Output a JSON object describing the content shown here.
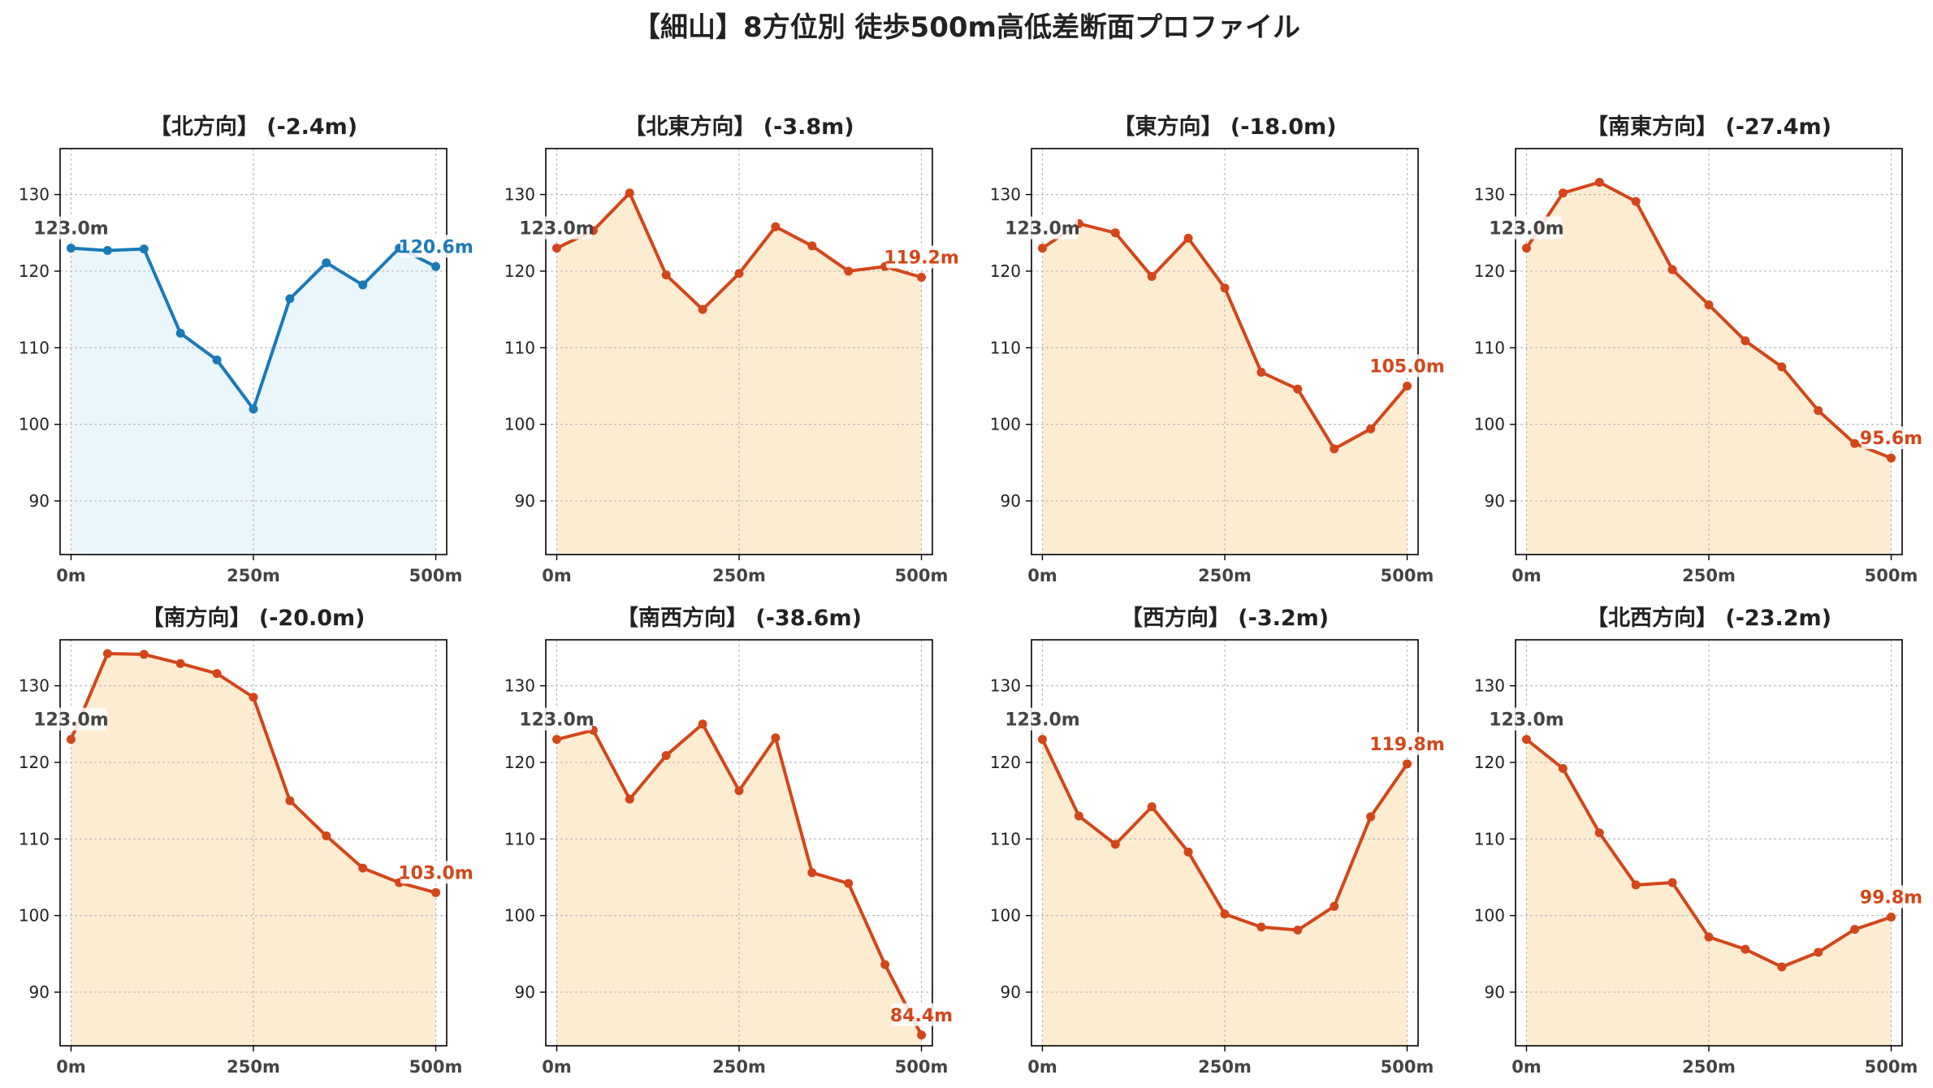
{
  "suptitle": "【細山】8方位別 徒歩500m高低差断面プロファイル",
  "colors": {
    "north_line": "#1a7ab8",
    "north_fill": "#eaf6fb",
    "line": "#d3461a",
    "fill": "#fdecd2",
    "start_label": "#444444",
    "grid": "#bbbbbb"
  },
  "chart_data": [
    {
      "type": "area",
      "title": "【北方向】 (-2.4m)",
      "x": [
        0,
        50,
        100,
        150,
        200,
        250,
        300,
        350,
        400,
        450,
        500
      ],
      "y": [
        123.0,
        122.7,
        122.9,
        111.9,
        108.4,
        102.0,
        116.4,
        121.1,
        118.2,
        123.0,
        120.6
      ],
      "start_label": "123.0m",
      "end_label": "120.6m",
      "xticks": [
        "0m",
        "250m",
        "500m"
      ],
      "yticks": [
        90,
        100,
        110,
        120,
        130
      ],
      "ylim": [
        83,
        136
      ],
      "xlim": [
        -15,
        515
      ],
      "grid": true
    },
    {
      "type": "area",
      "title": "【北東方向】 (-3.8m)",
      "x": [
        0,
        50,
        100,
        150,
        200,
        250,
        300,
        350,
        400,
        450,
        500
      ],
      "y": [
        123.0,
        125.3,
        130.2,
        119.5,
        115.0,
        119.7,
        125.8,
        123.3,
        120.0,
        120.6,
        119.2
      ],
      "start_label": "123.0m",
      "end_label": "119.2m",
      "xticks": [
        "0m",
        "250m",
        "500m"
      ],
      "yticks": [
        90,
        100,
        110,
        120,
        130
      ],
      "ylim": [
        83,
        136
      ],
      "xlim": [
        -15,
        515
      ],
      "grid": true
    },
    {
      "type": "area",
      "title": "【東方向】 (-18.0m)",
      "x": [
        0,
        50,
        100,
        150,
        200,
        250,
        300,
        350,
        400,
        450,
        500
      ],
      "y": [
        123.0,
        126.2,
        125.0,
        119.3,
        124.3,
        117.8,
        106.8,
        104.6,
        96.8,
        99.4,
        105.0
      ],
      "start_label": "123.0m",
      "end_label": "105.0m",
      "xticks": [
        "0m",
        "250m",
        "500m"
      ],
      "yticks": [
        90,
        100,
        110,
        120,
        130
      ],
      "ylim": [
        83,
        136
      ],
      "xlim": [
        -15,
        515
      ],
      "grid": true
    },
    {
      "type": "area",
      "title": "【南東方向】 (-27.4m)",
      "x": [
        0,
        50,
        100,
        150,
        200,
        250,
        300,
        350,
        400,
        450,
        500
      ],
      "y": [
        123.0,
        130.2,
        131.6,
        129.1,
        120.2,
        115.6,
        110.9,
        107.5,
        101.8,
        97.5,
        95.6
      ],
      "start_label": "123.0m",
      "end_label": "95.6m",
      "xticks": [
        "0m",
        "250m",
        "500m"
      ],
      "yticks": [
        90,
        100,
        110,
        120,
        130
      ],
      "ylim": [
        83,
        136
      ],
      "xlim": [
        -15,
        515
      ],
      "grid": true
    },
    {
      "type": "area",
      "title": "【南方向】 (-20.0m)",
      "x": [
        0,
        50,
        100,
        150,
        200,
        250,
        300,
        350,
        400,
        450,
        500
      ],
      "y": [
        123.0,
        134.2,
        134.1,
        132.9,
        131.6,
        128.5,
        115.0,
        110.4,
        106.2,
        104.3,
        103.0
      ],
      "start_label": "123.0m",
      "end_label": "103.0m",
      "xticks": [
        "0m",
        "250m",
        "500m"
      ],
      "yticks": [
        90,
        100,
        110,
        120,
        130
      ],
      "ylim": [
        83,
        136
      ],
      "xlim": [
        -15,
        515
      ],
      "grid": true
    },
    {
      "type": "area",
      "title": "【南西方向】 (-38.6m)",
      "x": [
        0,
        50,
        100,
        150,
        200,
        250,
        300,
        350,
        400,
        450,
        500
      ],
      "y": [
        123.0,
        124.2,
        115.2,
        120.9,
        125.0,
        116.3,
        123.2,
        105.6,
        104.2,
        93.6,
        84.4
      ],
      "start_label": "123.0m",
      "end_label": "84.4m",
      "xticks": [
        "0m",
        "250m",
        "500m"
      ],
      "yticks": [
        90,
        100,
        110,
        120,
        130
      ],
      "ylim": [
        83,
        136
      ],
      "xlim": [
        -15,
        515
      ],
      "grid": true
    },
    {
      "type": "area",
      "title": "【西方向】 (-3.2m)",
      "x": [
        0,
        50,
        100,
        150,
        200,
        250,
        300,
        350,
        400,
        450,
        500
      ],
      "y": [
        123.0,
        113.0,
        109.3,
        114.2,
        108.3,
        100.2,
        98.5,
        98.1,
        101.2,
        112.9,
        119.8
      ],
      "start_label": "123.0m",
      "end_label": "119.8m",
      "xticks": [
        "0m",
        "250m",
        "500m"
      ],
      "yticks": [
        90,
        100,
        110,
        120,
        130
      ],
      "ylim": [
        83,
        136
      ],
      "xlim": [
        -15,
        515
      ],
      "grid": true
    },
    {
      "type": "area",
      "title": "【北西方向】 (-23.2m)",
      "x": [
        0,
        50,
        100,
        150,
        200,
        250,
        300,
        350,
        400,
        450,
        500
      ],
      "y": [
        123.0,
        119.2,
        110.8,
        104.0,
        104.3,
        97.2,
        95.6,
        93.3,
        95.2,
        98.2,
        99.8
      ],
      "start_label": "123.0m",
      "end_label": "99.8m",
      "xticks": [
        "0m",
        "250m",
        "500m"
      ],
      "yticks": [
        90,
        100,
        110,
        120,
        130
      ],
      "ylim": [
        83,
        136
      ],
      "xlim": [
        -15,
        515
      ],
      "grid": true
    }
  ]
}
